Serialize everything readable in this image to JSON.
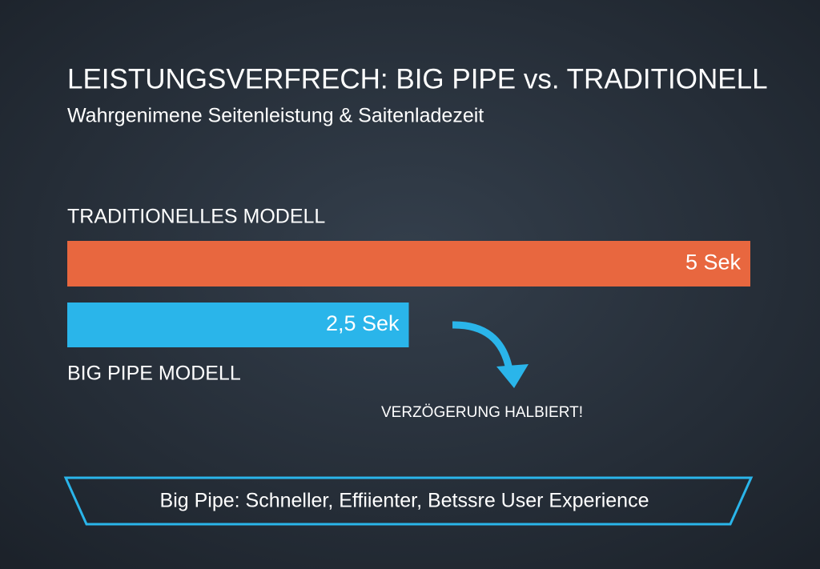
{
  "chart_data": {
    "type": "bar",
    "orientation": "horizontal",
    "title": "LEISTUNGSVERFRECH: BIG PIPE vs. TRADITIONELL",
    "subtitle": "Wahrgenimene Seitenleistung & Saitenladezeit",
    "categories": [
      "TRADITIONELLES MODELL",
      "BIG PIPE MODELL"
    ],
    "values": [
      5,
      2.5
    ],
    "value_labels": [
      "5 Sek",
      "2,5 Sek"
    ],
    "colors": [
      "#e8673f",
      "#2ab5ea"
    ],
    "xlim": [
      0,
      5
    ],
    "annotation": "VERZÖGERUNG HALBIERT!",
    "footer": "Big Pipe: Schneller, Effiienter, Betssre User Experience"
  }
}
